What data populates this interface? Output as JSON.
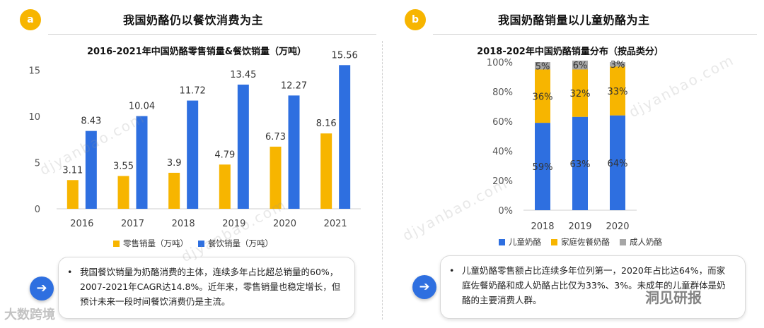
{
  "panel_a": {
    "badge": "a",
    "header": "我国奶酪仍以餐饮消费为主",
    "chart_title": "2016-2021年中国奶酪零售销量&餐饮销量（万吨）",
    "note": "我国餐饮销量为奶酪消费的主体，连续多年占比超总销量的60%，2007-2021年CAGR达14.8%。近年来，零售销量也稳定增长，但预计未来一段时间餐饮消费仍是主流。",
    "bullet": "•"
  },
  "panel_b": {
    "badge": "b",
    "header": "我国奶酪销量以儿童奶酪为主",
    "chart_title": "2018-202年中国奶酪销量分布（按品类分）",
    "note": "儿童奶酪零售额占比连续多年位列第一，2020年占比达64%，而家庭佐餐奶酪和成人奶酪占比仅为33%、3%。未成年的儿童群体是奶酪的主要消费人群。",
    "bullet": "•"
  },
  "watermarks": {
    "bottom_left": "大数跨境",
    "bottom_right": "洞见研报",
    "diagonal": "djyanbao.com"
  },
  "arrow_icon": "➔",
  "colors": {
    "yellow": "#F7B500",
    "blue": "#2E6FE0",
    "gray": "#A6A6A6"
  },
  "chart_data": [
    {
      "type": "bar",
      "title": "2016-2021年中国奶酪零售销量&餐饮销量（万吨）",
      "categories": [
        "2016",
        "2017",
        "2018",
        "2019",
        "2020",
        "2021"
      ],
      "series": [
        {
          "name": "零售销量（万吨）",
          "values": [
            3.11,
            3.55,
            3.9,
            4.79,
            6.73,
            8.16
          ],
          "labels": [
            "3.11",
            "3.55",
            "3.9",
            "4.79",
            "6.73",
            "8.16"
          ]
        },
        {
          "name": "餐饮销量（万吨）",
          "values": [
            8.43,
            10.04,
            11.72,
            13.45,
            12.27,
            15.56
          ],
          "labels": [
            "8.43",
            "10.04",
            "11.72",
            "13.45",
            "12.27",
            "15.56"
          ]
        }
      ],
      "yticks": [
        "0",
        "5",
        "10",
        "15"
      ],
      "ytick_values": [
        0,
        5,
        10,
        15
      ],
      "ylim": [
        0,
        16.5
      ],
      "xlabel": "",
      "ylabel": "",
      "legend_position": "bottom"
    },
    {
      "type": "bar",
      "stacked": true,
      "title": "2018-202年中国奶酪销量分布（按品类分）",
      "categories": [
        "2018",
        "2019",
        "2020"
      ],
      "series": [
        {
          "name": "儿童奶酪",
          "values": [
            59,
            63,
            64
          ],
          "labels": [
            "59%",
            "63%",
            "64%"
          ]
        },
        {
          "name": "家庭佐餐奶酪",
          "values": [
            36,
            32,
            33
          ],
          "labels": [
            "36%",
            "32%",
            "33%"
          ]
        },
        {
          "name": "成人奶酪",
          "values": [
            5,
            6,
            3
          ],
          "labels": [
            "5%",
            "6%",
            "3%"
          ]
        }
      ],
      "yticks": [
        "0%",
        "20%",
        "40%",
        "60%",
        "80%",
        "100%"
      ],
      "ytick_values": [
        0,
        20,
        40,
        60,
        80,
        100
      ],
      "ylim": [
        0,
        100
      ],
      "xlabel": "",
      "ylabel": "",
      "legend_position": "bottom"
    }
  ]
}
